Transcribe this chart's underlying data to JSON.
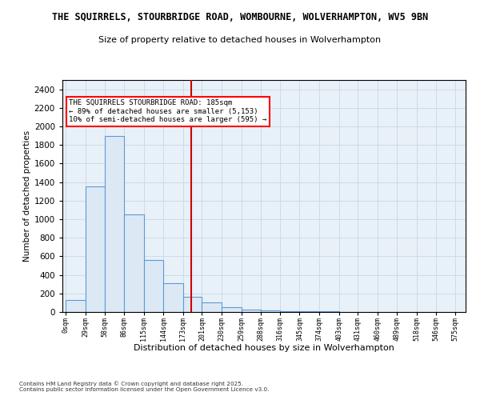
{
  "title": "THE SQUIRRELS, STOURBRIDGE ROAD, WOMBOURNE, WOLVERHAMPTON, WV5 9BN",
  "subtitle": "Size of property relative to detached houses in Wolverhampton",
  "xlabel": "Distribution of detached houses by size in Wolverhampton",
  "ylabel": "Number of detached properties",
  "bar_values": [
    130,
    1350,
    1900,
    1050,
    560,
    310,
    160,
    100,
    55,
    30,
    20,
    10,
    8,
    5,
    3,
    2,
    1,
    1,
    0,
    0
  ],
  "bar_left_edges": [
    0,
    29,
    58,
    86,
    115,
    144,
    173,
    201,
    230,
    259,
    288,
    316,
    345,
    374,
    403,
    431,
    460,
    489,
    518,
    546
  ],
  "bar_widths": [
    29,
    29,
    28,
    29,
    29,
    29,
    28,
    29,
    29,
    29,
    28,
    29,
    29,
    29,
    28,
    29,
    29,
    29,
    28,
    29
  ],
  "x_tick_labels": [
    "0sqm",
    "29sqm",
    "58sqm",
    "86sqm",
    "115sqm",
    "144sqm",
    "173sqm",
    "201sqm",
    "230sqm",
    "259sqm",
    "288sqm",
    "316sqm",
    "345sqm",
    "374sqm",
    "403sqm",
    "431sqm",
    "460sqm",
    "489sqm",
    "518sqm",
    "546sqm",
    "575sqm"
  ],
  "x_tick_positions": [
    0,
    29,
    58,
    86,
    115,
    144,
    173,
    201,
    230,
    259,
    288,
    316,
    345,
    374,
    403,
    431,
    460,
    489,
    518,
    546,
    575
  ],
  "ylim": [
    0,
    2500
  ],
  "yticks": [
    0,
    200,
    400,
    600,
    800,
    1000,
    1200,
    1400,
    1600,
    1800,
    2000,
    2200,
    2400
  ],
  "bar_color": "#dce9f5",
  "bar_edge_color": "#5b9bd5",
  "grid_color": "#c8d8e8",
  "background_color": "#e8f0f8",
  "red_line_x": 185,
  "annotation_title": "THE SQUIRRELS STOURBRIDGE ROAD: 185sqm",
  "annotation_line1": "← 89% of detached houses are smaller (5,153)",
  "annotation_line2": "10% of semi-detached houses are larger (595) →",
  "footer1": "Contains HM Land Registry data © Crown copyright and database right 2025.",
  "footer2": "Contains public sector information licensed under the Open Government Licence v3.0."
}
